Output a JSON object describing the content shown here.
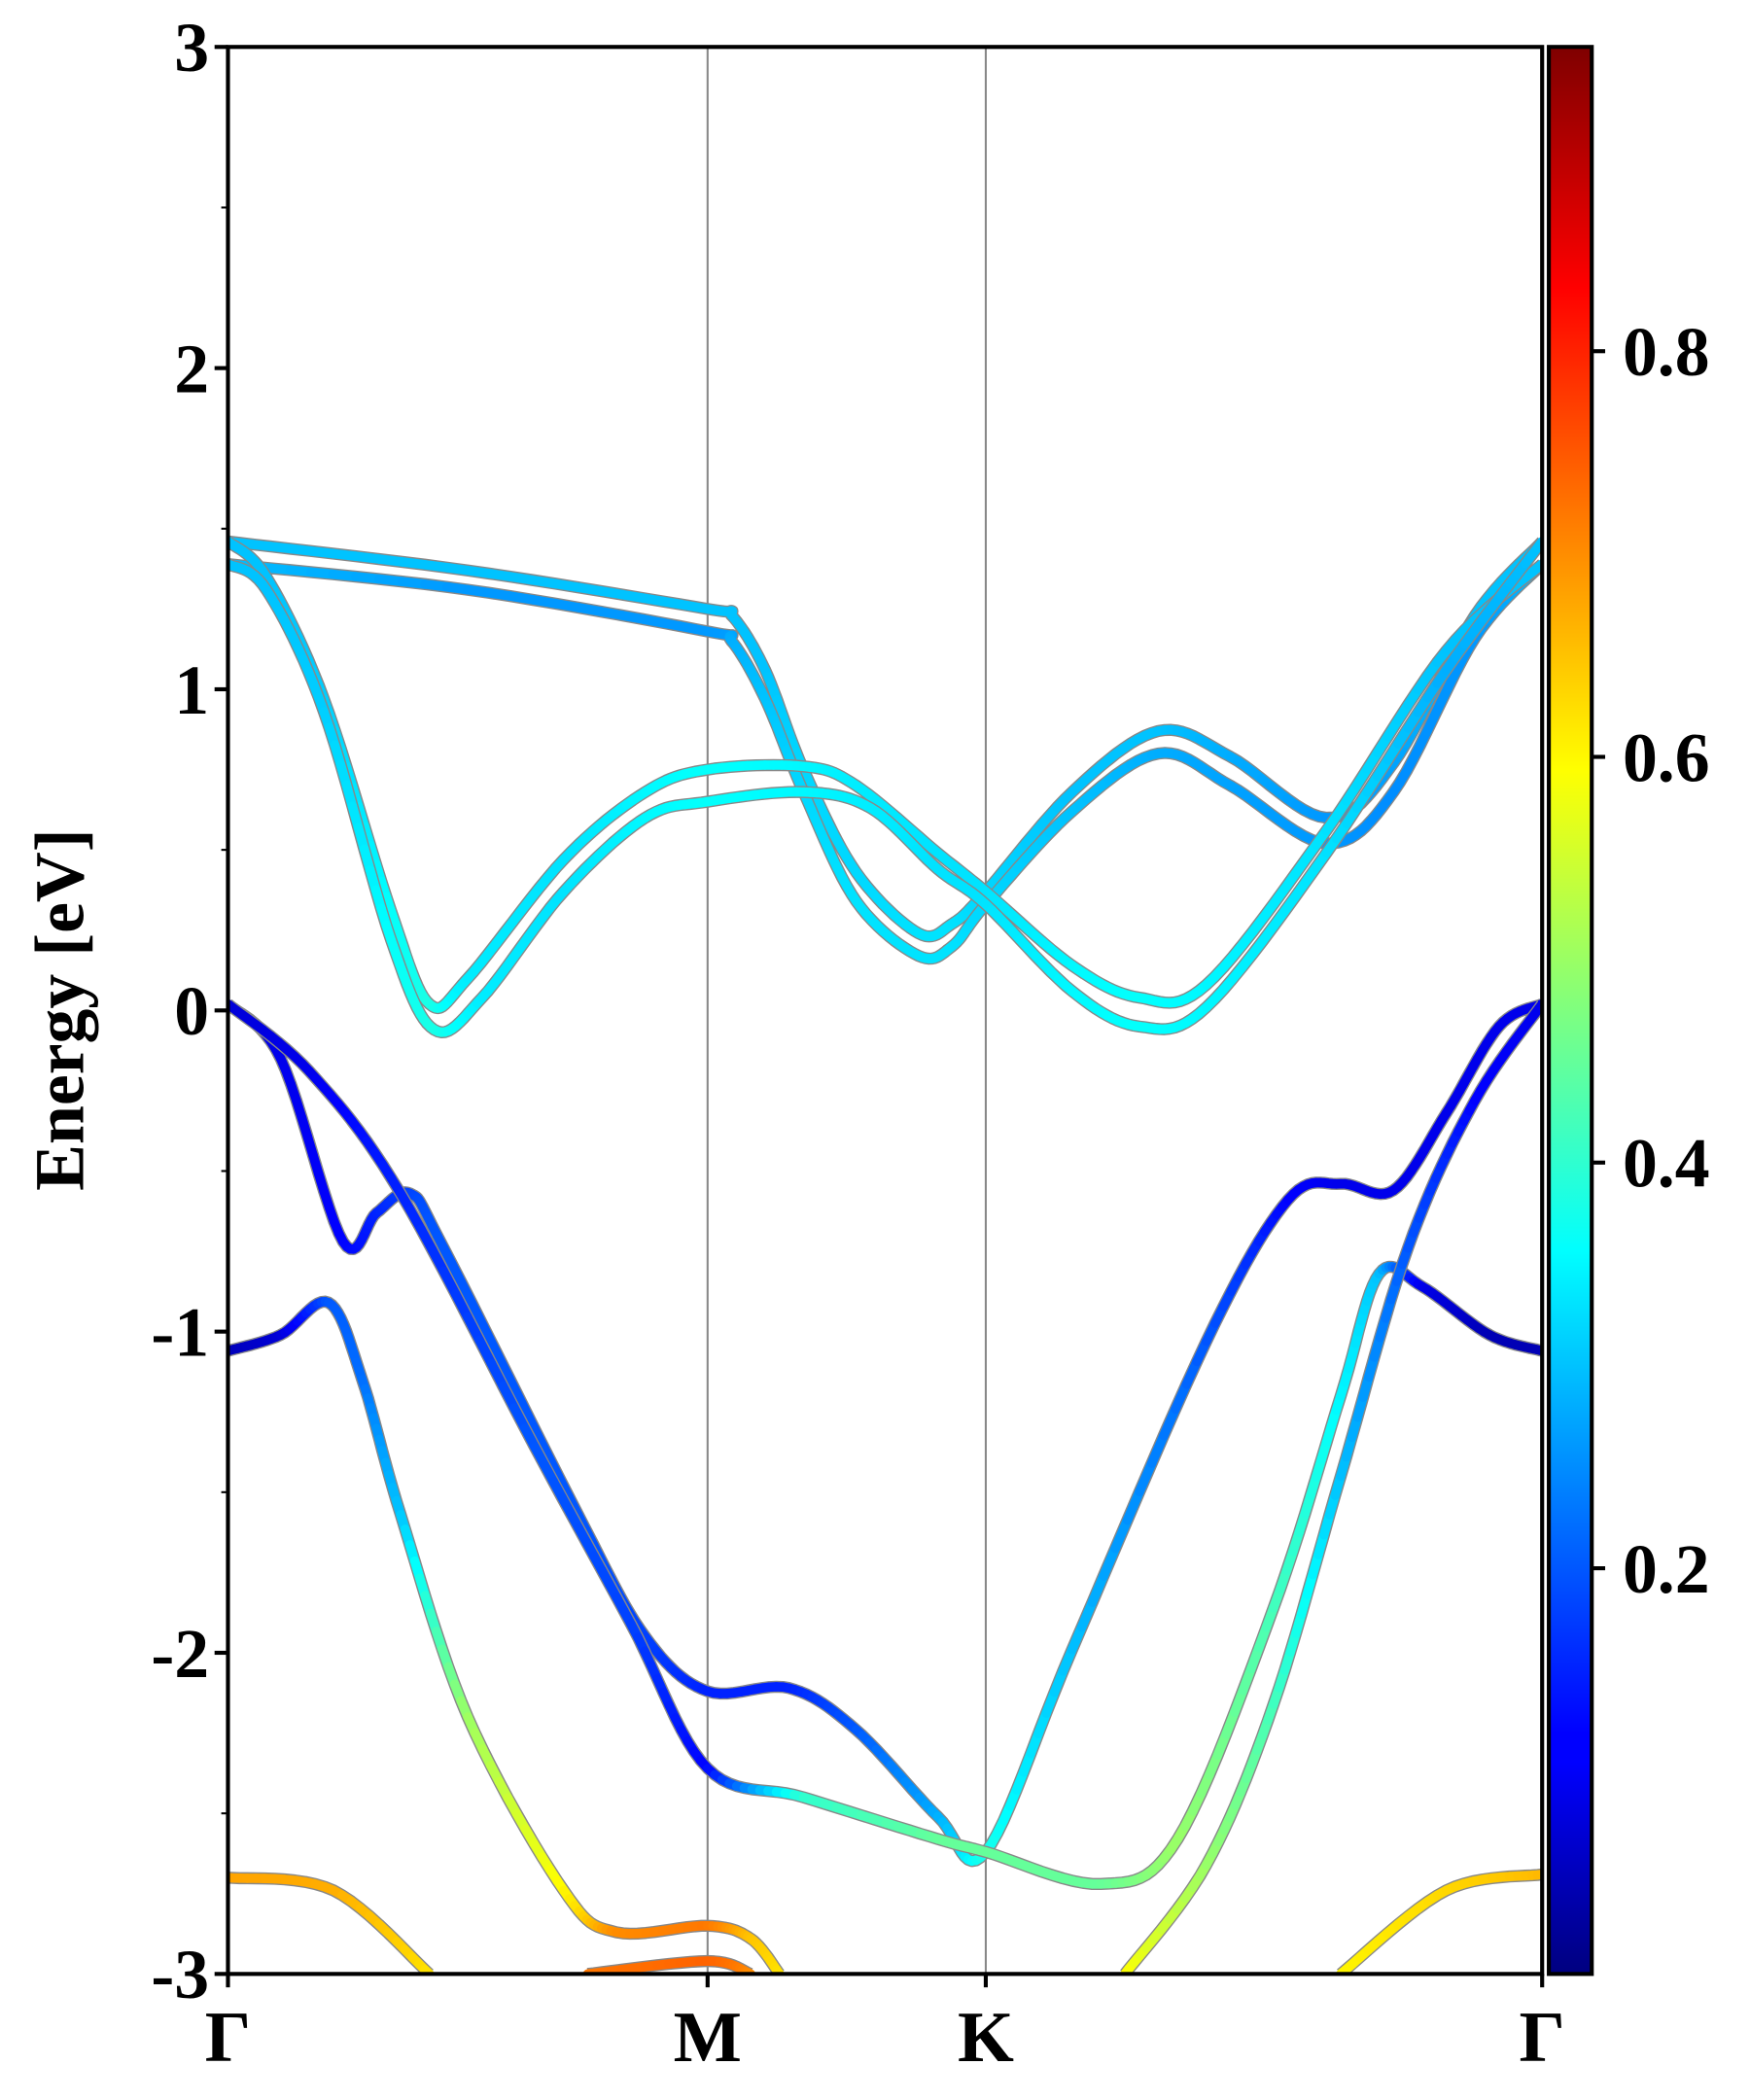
{
  "chart_data": {
    "type": "line",
    "title": "",
    "ylabel": "Energy [eV]",
    "xlabel": "",
    "ylim": [
      -3,
      3
    ],
    "yticks": [
      "-3",
      "-2",
      "-1",
      "0",
      "1",
      "2",
      "3"
    ],
    "yticks_values": [
      -3,
      -2,
      -1,
      0,
      1,
      2,
      3
    ],
    "kpath": [
      {
        "label": "Γ",
        "k": 0
      },
      {
        "label": "M",
        "k": 1.0
      },
      {
        "label": "K",
        "k": 1.58
      },
      {
        "label": "Γ",
        "k": 2.74
      }
    ],
    "colorbar": {
      "colormap": "jet",
      "range": [
        0,
        0.95
      ],
      "ticks": [
        "0.2",
        "0.4",
        "0.6",
        "0.8"
      ],
      "tick_values": [
        0.2,
        0.4,
        0.6,
        0.8
      ]
    },
    "bands_format": "[k, energy_eV, weight]",
    "bands": [
      {
        "name": "C1",
        "points": [
          [
            0,
            1.46,
            0.3
          ],
          [
            0.5,
            1.37,
            0.3
          ],
          [
            1.0,
            1.25,
            0.3
          ],
          [
            1.05,
            1.23,
            0.3
          ],
          [
            1.12,
            1.06,
            0.3
          ],
          [
            1.2,
            0.75,
            0.32
          ],
          [
            1.31,
            0.43,
            0.32
          ],
          [
            1.44,
            0.24,
            0.33
          ],
          [
            1.51,
            0.27,
            0.33
          ],
          [
            1.58,
            0.37,
            0.32
          ],
          [
            1.76,
            0.68,
            0.3
          ],
          [
            1.94,
            0.87,
            0.3
          ],
          [
            2.09,
            0.79,
            0.28
          ],
          [
            2.29,
            0.6,
            0.26
          ],
          [
            2.43,
            0.77,
            0.27
          ],
          [
            2.6,
            1.23,
            0.3
          ],
          [
            2.74,
            1.46,
            0.3
          ]
        ]
      },
      {
        "name": "C2",
        "points": [
          [
            0,
            1.39,
            0.3
          ],
          [
            0.5,
            1.31,
            0.26
          ],
          [
            1.0,
            1.18,
            0.26
          ],
          [
            1.05,
            1.15,
            0.28
          ],
          [
            1.12,
            0.97,
            0.3
          ],
          [
            1.2,
            0.68,
            0.32
          ],
          [
            1.31,
            0.34,
            0.33
          ],
          [
            1.44,
            0.17,
            0.33
          ],
          [
            1.51,
            0.2,
            0.33
          ],
          [
            1.58,
            0.33,
            0.32
          ],
          [
            1.76,
            0.62,
            0.3
          ],
          [
            1.94,
            0.8,
            0.28
          ],
          [
            2.09,
            0.7,
            0.27
          ],
          [
            2.29,
            0.52,
            0.26
          ],
          [
            2.43,
            0.68,
            0.25
          ],
          [
            2.6,
            1.16,
            0.26
          ],
          [
            2.74,
            1.39,
            0.3
          ]
        ]
      },
      {
        "name": "C3",
        "points": [
          [
            0,
            1.46,
            0.3
          ],
          [
            0.08,
            1.35,
            0.3
          ],
          [
            0.2,
            0.97,
            0.31
          ],
          [
            0.34,
            0.31,
            0.36
          ],
          [
            0.42,
            0.02,
            0.38
          ],
          [
            0.5,
            0.1,
            0.34
          ],
          [
            0.7,
            0.47,
            0.33
          ],
          [
            0.87,
            0.68,
            0.35
          ],
          [
            1.0,
            0.75,
            0.36
          ],
          [
            1.2,
            0.76,
            0.35
          ],
          [
            1.31,
            0.7,
            0.34
          ],
          [
            1.48,
            0.49,
            0.33
          ],
          [
            1.58,
            0.37,
            0.33
          ],
          [
            1.76,
            0.14,
            0.35
          ],
          [
            1.9,
            0.04,
            0.36
          ],
          [
            2.04,
            0.08,
            0.35
          ],
          [
            2.29,
            0.56,
            0.33
          ],
          [
            2.54,
            1.12,
            0.3
          ],
          [
            2.74,
            1.39,
            0.3
          ]
        ]
      },
      {
        "name": "C4",
        "points": [
          [
            0,
            1.39,
            0.3
          ],
          [
            0.08,
            1.31,
            0.3
          ],
          [
            0.2,
            0.93,
            0.31
          ],
          [
            0.34,
            0.22,
            0.36
          ],
          [
            0.43,
            -0.06,
            0.38
          ],
          [
            0.53,
            0.04,
            0.34
          ],
          [
            0.7,
            0.37,
            0.33
          ],
          [
            0.87,
            0.6,
            0.35
          ],
          [
            1.0,
            0.65,
            0.36
          ],
          [
            1.2,
            0.68,
            0.35
          ],
          [
            1.34,
            0.63,
            0.34
          ],
          [
            1.48,
            0.44,
            0.33
          ],
          [
            1.58,
            0.33,
            0.33
          ],
          [
            1.76,
            0.06,
            0.35
          ],
          [
            1.9,
            -0.05,
            0.36
          ],
          [
            2.04,
            0.01,
            0.35
          ],
          [
            2.29,
            0.49,
            0.33
          ],
          [
            2.54,
            1.06,
            0.28
          ],
          [
            2.74,
            1.46,
            0.3
          ]
        ]
      },
      {
        "name": "V1",
        "points": [
          [
            0,
            0.02,
            0.08
          ],
          [
            0.11,
            -0.15,
            0.1
          ],
          [
            0.24,
            -0.72,
            0.12
          ],
          [
            0.31,
            -0.63,
            0.15
          ],
          [
            0.38,
            -0.57,
            0.18
          ],
          [
            0.45,
            -0.74,
            0.2
          ],
          [
            0.73,
            -1.57,
            0.2
          ],
          [
            0.87,
            -1.95,
            0.18
          ],
          [
            1.0,
            -2.12,
            0.15
          ],
          [
            1.17,
            -2.11,
            0.15
          ],
          [
            1.31,
            -2.24,
            0.2
          ],
          [
            1.48,
            -2.51,
            0.28
          ],
          [
            1.58,
            -2.62,
            0.38
          ],
          [
            1.76,
            -1.99,
            0.3
          ],
          [
            2.04,
            -1.03,
            0.2
          ],
          [
            2.21,
            -0.59,
            0.12
          ],
          [
            2.32,
            -0.54,
            0.1
          ],
          [
            2.43,
            -0.56,
            0.1
          ],
          [
            2.54,
            -0.32,
            0.1
          ],
          [
            2.65,
            -0.05,
            0.1
          ],
          [
            2.74,
            0.02,
            0.1
          ]
        ]
      },
      {
        "name": "V2",
        "points": [
          [
            0,
            0.02,
            0.08
          ],
          [
            0.17,
            -0.19,
            0.1
          ],
          [
            0.36,
            -0.57,
            0.15
          ],
          [
            0.64,
            -1.36,
            0.2
          ],
          [
            0.84,
            -1.91,
            0.18
          ],
          [
            1.0,
            -2.36,
            0.12
          ],
          [
            1.2,
            -2.45,
            0.4
          ],
          [
            1.48,
            -2.58,
            0.45
          ],
          [
            1.58,
            -2.62,
            0.45
          ],
          [
            1.82,
            -2.72,
            0.45
          ],
          [
            1.98,
            -2.58,
            0.5
          ],
          [
            2.18,
            -1.86,
            0.42
          ],
          [
            2.32,
            -1.2,
            0.35
          ],
          [
            2.4,
            -0.82,
            0.3
          ],
          [
            2.49,
            -0.86,
            0.1
          ],
          [
            2.63,
            -1.01,
            0.05
          ],
          [
            2.74,
            -1.06,
            0.05
          ]
        ]
      },
      {
        "name": "V3",
        "points": [
          [
            0,
            -1.06,
            0.05
          ],
          [
            0.11,
            -1.01,
            0.08
          ],
          [
            0.21,
            -0.91,
            0.2
          ],
          [
            0.28,
            -1.15,
            0.22
          ],
          [
            0.36,
            -1.57,
            0.3
          ],
          [
            0.5,
            -2.2,
            0.5
          ],
          [
            0.7,
            -2.74,
            0.6
          ],
          [
            0.81,
            -2.87,
            0.7
          ],
          [
            1.0,
            -2.85,
            0.72
          ],
          [
            1.09,
            -2.89,
            0.65
          ],
          [
            1.15,
            -3.0,
            0.62
          ]
        ]
      },
      {
        "name": "V4",
        "points": [
          [
            1.87,
            -3.0,
            0.6
          ],
          [
            2.04,
            -2.66,
            0.5
          ],
          [
            2.18,
            -2.16,
            0.42
          ],
          [
            2.32,
            -1.45,
            0.3
          ],
          [
            2.46,
            -0.74,
            0.2
          ],
          [
            2.6,
            -0.28,
            0.12
          ],
          [
            2.74,
            0.02,
            0.1
          ]
        ]
      },
      {
        "name": "V5",
        "points": [
          [
            0,
            -2.7,
            0.68
          ],
          [
            0.22,
            -2.74,
            0.67
          ],
          [
            0.42,
            -3.0,
            0.62
          ]
        ]
      },
      {
        "name": "V6",
        "points": [
          [
            2.32,
            -3.0,
            0.6
          ],
          [
            2.54,
            -2.74,
            0.63
          ],
          [
            2.74,
            -2.69,
            0.66
          ]
        ]
      },
      {
        "name": "V7",
        "points": [
          [
            0.75,
            -3.0,
            0.72
          ],
          [
            1.0,
            -2.96,
            0.74
          ],
          [
            1.09,
            -3.0,
            0.7
          ]
        ]
      }
    ]
  }
}
